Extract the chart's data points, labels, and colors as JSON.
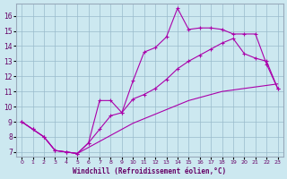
{
  "xlabel": "Windchill (Refroidissement éolien,°C)",
  "bg_color": "#cce8f0",
  "line_color": "#aa00aa",
  "grid_color": "#99bbcc",
  "xlim": [
    -0.5,
    23.5
  ],
  "ylim": [
    6.7,
    16.8
  ],
  "yticks": [
    7,
    8,
    9,
    10,
    11,
    12,
    13,
    14,
    15,
    16
  ],
  "xticks": [
    0,
    1,
    2,
    3,
    4,
    5,
    6,
    7,
    8,
    9,
    10,
    11,
    12,
    13,
    14,
    15,
    16,
    17,
    18,
    19,
    20,
    21,
    22,
    23
  ],
  "line1_x": [
    0,
    1,
    2,
    3,
    4,
    5,
    6,
    7,
    8,
    9,
    10,
    11,
    12,
    13,
    14,
    15,
    16,
    17,
    18,
    19,
    20,
    21,
    22,
    23
  ],
  "line1_y": [
    9.0,
    8.5,
    8.0,
    7.1,
    7.0,
    6.9,
    7.3,
    7.7,
    8.1,
    8.5,
    8.9,
    9.2,
    9.5,
    9.8,
    10.1,
    10.4,
    10.6,
    10.8,
    11.0,
    11.1,
    11.2,
    11.3,
    11.4,
    11.5
  ],
  "line2_x": [
    0,
    1,
    2,
    3,
    4,
    5,
    6,
    7,
    8,
    9,
    10,
    11,
    12,
    13,
    14,
    15,
    16,
    17,
    18,
    19,
    20,
    21,
    22,
    23
  ],
  "line2_y": [
    9.0,
    8.5,
    8.0,
    7.1,
    7.0,
    6.9,
    7.6,
    8.5,
    9.4,
    9.6,
    10.5,
    10.8,
    11.2,
    11.8,
    12.5,
    13.0,
    13.4,
    13.8,
    14.2,
    14.5,
    13.5,
    13.2,
    13.0,
    11.2
  ],
  "line3_x": [
    0,
    1,
    2,
    3,
    4,
    5,
    6,
    7,
    8,
    9,
    10,
    11,
    12,
    13,
    14,
    15,
    16,
    17,
    18,
    19,
    20,
    21,
    22,
    23
  ],
  "line3_y": [
    9.0,
    8.5,
    8.0,
    7.1,
    7.0,
    6.9,
    7.6,
    10.4,
    10.4,
    9.6,
    11.7,
    13.6,
    13.9,
    14.6,
    16.5,
    15.1,
    15.2,
    15.2,
    15.1,
    14.8,
    14.8,
    14.8,
    12.8,
    11.2
  ]
}
